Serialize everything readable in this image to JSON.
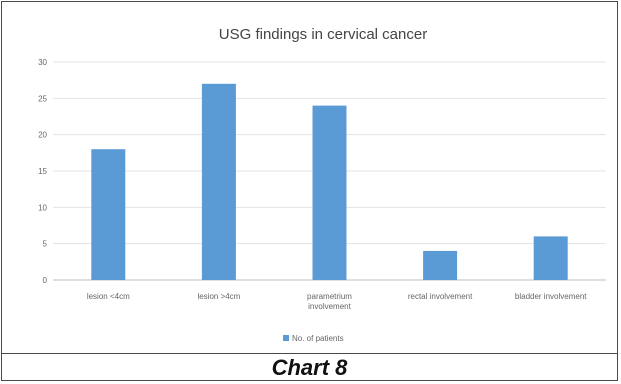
{
  "chart_data": {
    "type": "bar",
    "title": "USG findings in cervical cancer",
    "categories": [
      [
        "lesion <4cm"
      ],
      [
        "lesion >4cm"
      ],
      [
        "parametrium",
        "involvement"
      ],
      [
        "rectal involvement"
      ],
      [
        "bladder involvement"
      ]
    ],
    "series": [
      {
        "name": "No. of patients",
        "values": [
          18,
          27,
          24,
          4,
          6
        ],
        "color": "#5b9bd5"
      }
    ],
    "ylim": [
      0,
      30
    ],
    "yticks": [
      0,
      5,
      10,
      15,
      20,
      25,
      30
    ],
    "grid": true,
    "legend": "bottom"
  },
  "caption": "Chart 8"
}
